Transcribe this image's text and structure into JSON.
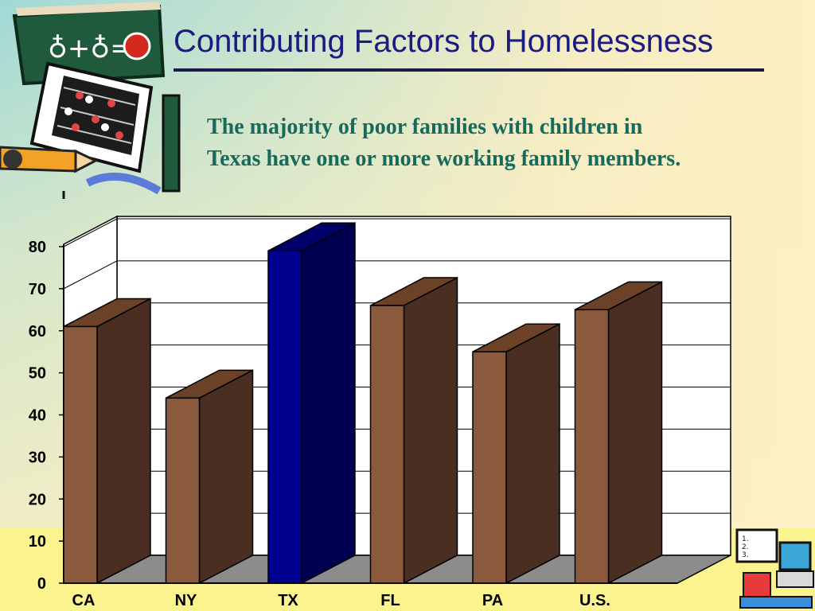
{
  "slide": {
    "title": "Contributing Factors to Homelessness",
    "subtitle_lines": [
      "The majority of poor families with children in",
      "Texas have one or more working family members."
    ]
  },
  "icons": {
    "top_left": "school-clipart-apple-abacus-pencil-icon",
    "bottom_right": "school-clipart-computer-icon"
  },
  "chart_data": {
    "type": "bar",
    "style": "3d-column",
    "categories": [
      "CA",
      "NY",
      "TX",
      "FL",
      "PA",
      "U.S."
    ],
    "values": [
      61,
      44,
      79,
      66,
      55,
      65
    ],
    "ylim": [
      0,
      80
    ],
    "yticks": [
      0,
      10,
      20,
      30,
      40,
      50,
      60,
      70,
      80
    ],
    "grid": true,
    "legend": "none",
    "colors": {
      "default_front": "#8b5a3c",
      "default_side": "#4b2e22",
      "default_top": "#6b4128",
      "highlight_front": "#00008f",
      "highlight_side": "#000050",
      "highlight_top": "#00006a",
      "floor": "#8c8c8c",
      "wall": "#ffffff"
    },
    "highlight_category": "TX"
  }
}
